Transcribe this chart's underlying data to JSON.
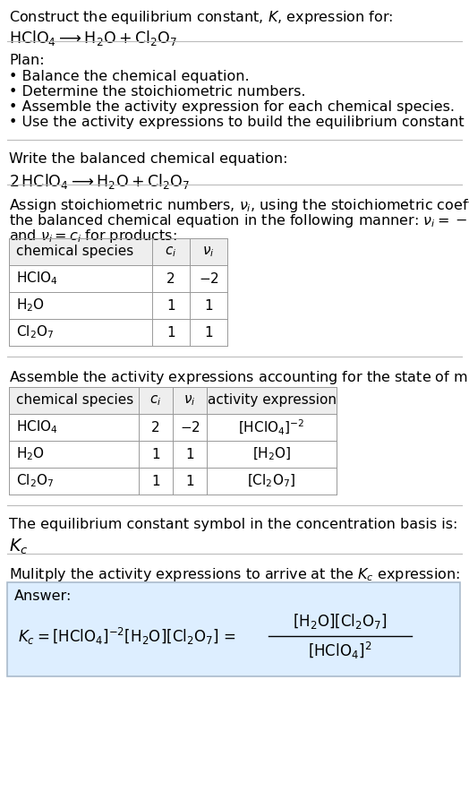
{
  "title_line1": "Construct the equilibrium constant, $K$, expression for:",
  "title_line2": "$\\mathrm{HClO_4}  \\longrightarrow  \\mathrm{H_2O + Cl_2O_7}$",
  "plan_header": "Plan:",
  "plan_items": [
    "• Balance the chemical equation.",
    "• Determine the stoichiometric numbers.",
    "• Assemble the activity expression for each chemical species.",
    "• Use the activity expressions to build the equilibrium constant expression."
  ],
  "balanced_eq_header": "Write the balanced chemical equation:",
  "balanced_eq": "$2 \\, \\mathrm{HClO_4}  \\longrightarrow  \\mathrm{H_2O + Cl_2O_7}$",
  "stoich_intro1": "Assign stoichiometric numbers, $\\nu_i$, using the stoichiometric coefficients, $c_i$, from",
  "stoich_intro2": "the balanced chemical equation in the following manner: $\\nu_i = -c_i$ for reactants",
  "stoich_intro3": "and $\\nu_i = c_i$ for products:",
  "table1_headers": [
    "chemical species",
    "$c_i$",
    "$\\nu_i$"
  ],
  "table1_rows": [
    [
      "$\\mathrm{HClO_4}$",
      "2",
      "$-2$"
    ],
    [
      "$\\mathrm{H_2O}$",
      "1",
      "1"
    ],
    [
      "$\\mathrm{Cl_2O_7}$",
      "1",
      "1"
    ]
  ],
  "assemble_intro": "Assemble the activity expressions accounting for the state of matter and $\\nu_i$:",
  "table2_headers": [
    "chemical species",
    "$c_i$",
    "$\\nu_i$",
    "activity expression"
  ],
  "table2_rows": [
    [
      "$\\mathrm{HClO_4}$",
      "2",
      "$-2$",
      "$[\\mathrm{HClO_4}]^{-2}$"
    ],
    [
      "$\\mathrm{H_2O}$",
      "1",
      "1",
      "$[\\mathrm{H_2O}]$"
    ],
    [
      "$\\mathrm{Cl_2O_7}$",
      "1",
      "1",
      "$[\\mathrm{Cl_2O_7}]$"
    ]
  ],
  "kc_symbol_text": "The equilibrium constant symbol in the concentration basis is:",
  "kc_symbol": "$K_c$",
  "multiply_text": "Mulitply the activity expressions to arrive at the $K_c$ expression:",
  "answer_label": "Answer:",
  "answer_box_color": "#ddeeff",
  "answer_border_color": "#aabbcc",
  "bg_color": "#ffffff",
  "text_color": "#000000",
  "line_color": "#bbbbbb"
}
